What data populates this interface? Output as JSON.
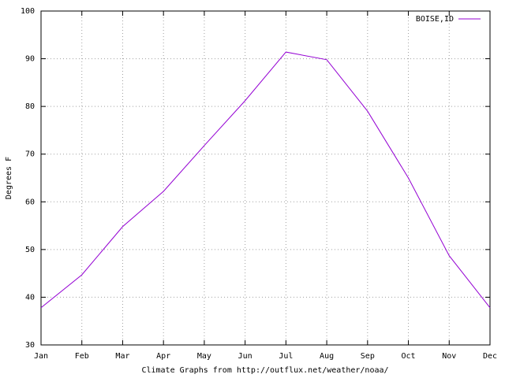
{
  "chart_data": {
    "type": "line",
    "x_label": "Climate Graphs from http://outflux.net/weather/noaa/",
    "y_label": "Degrees F",
    "categories": [
      "Jan",
      "Feb",
      "Mar",
      "Apr",
      "May",
      "Jun",
      "Jul",
      "Aug",
      "Sep",
      "Oct",
      "Nov",
      "Dec"
    ],
    "series": [
      {
        "name": "BOISE,ID",
        "color": "#9400d3",
        "values": [
          37.8,
          44.7,
          54.8,
          62.2,
          71.8,
          81.2,
          91.4,
          89.8,
          79.0,
          65.0,
          48.7,
          37.8
        ]
      }
    ],
    "ylim": [
      30,
      100
    ],
    "yticks": [
      30,
      40,
      50,
      60,
      70,
      80,
      90,
      100
    ],
    "grid": true,
    "legend": "top-right"
  }
}
